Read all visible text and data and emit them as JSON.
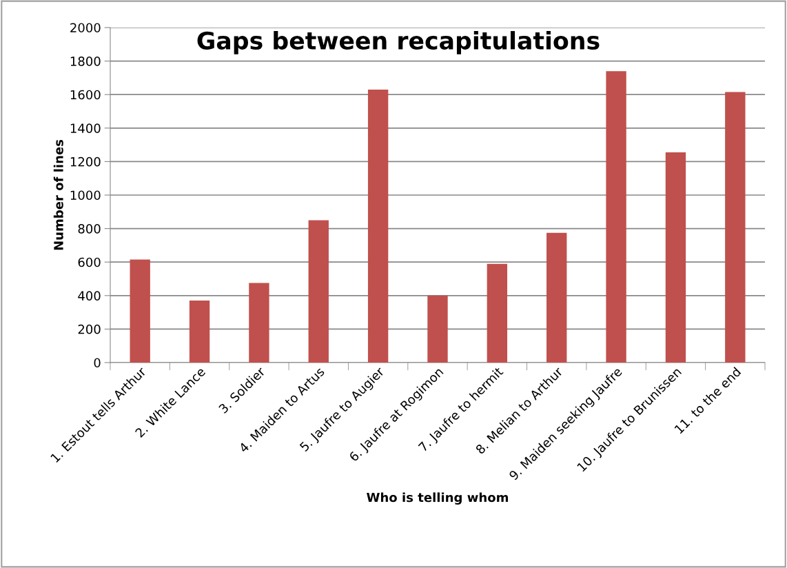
{
  "chart_data": {
    "type": "bar",
    "title": "Gaps between recapitulations",
    "xlabel": "Who is telling whom",
    "ylabel": "Number of lines",
    "categories": [
      "1. Estout tells Arthur",
      "2. White Lance",
      "3. Soldier",
      "4. Maiden to Artus",
      "5. Jaufre to Augier",
      "6. Jaufre at Rogimon",
      "7. Jaufre to hermit",
      "8. Melian to Arthur",
      "9. Maiden seeking Jaufre",
      "10. Jaufre to Brunissen",
      "11. to the end"
    ],
    "values": [
      615,
      370,
      475,
      850,
      1630,
      400,
      590,
      775,
      1740,
      1255,
      1615
    ],
    "color": "#c0504d",
    "ylim": [
      0,
      2000
    ],
    "yticks": [
      0,
      200,
      400,
      600,
      800,
      1000,
      1200,
      1400,
      1600,
      1800,
      2000
    ],
    "grid": "y",
    "legend": false
  }
}
